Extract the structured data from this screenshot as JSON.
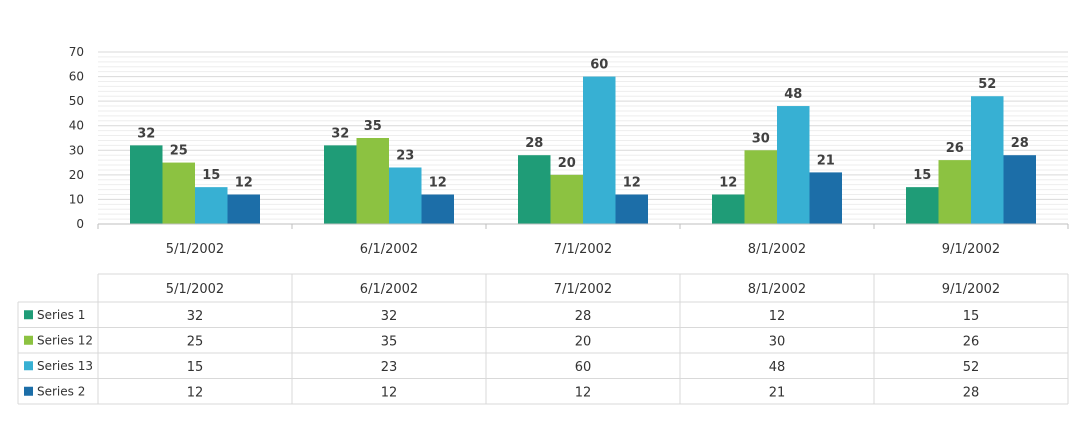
{
  "chart_data": {
    "type": "bar",
    "categories": [
      "5/1/2002",
      "6/1/2002",
      "7/1/2002",
      "8/1/2002",
      "9/1/2002"
    ],
    "series": [
      {
        "name": "Series 1",
        "color": "#1f9c77",
        "values": [
          32,
          32,
          28,
          12,
          15
        ]
      },
      {
        "name": "Series 12",
        "color": "#8cc241",
        "values": [
          25,
          35,
          20,
          30,
          26
        ]
      },
      {
        "name": "Series 13",
        "color": "#37b0d3",
        "values": [
          15,
          23,
          60,
          48,
          52
        ]
      },
      {
        "name": "Series 2",
        "color": "#1c6ea8",
        "values": [
          12,
          12,
          12,
          21,
          28
        ]
      }
    ],
    "ylim": [
      0,
      70
    ],
    "yticks": [
      0,
      10,
      20,
      30,
      40,
      50,
      60,
      70
    ],
    "grid": true,
    "data_labels": true,
    "data_table": true,
    "legend": "data-table"
  }
}
